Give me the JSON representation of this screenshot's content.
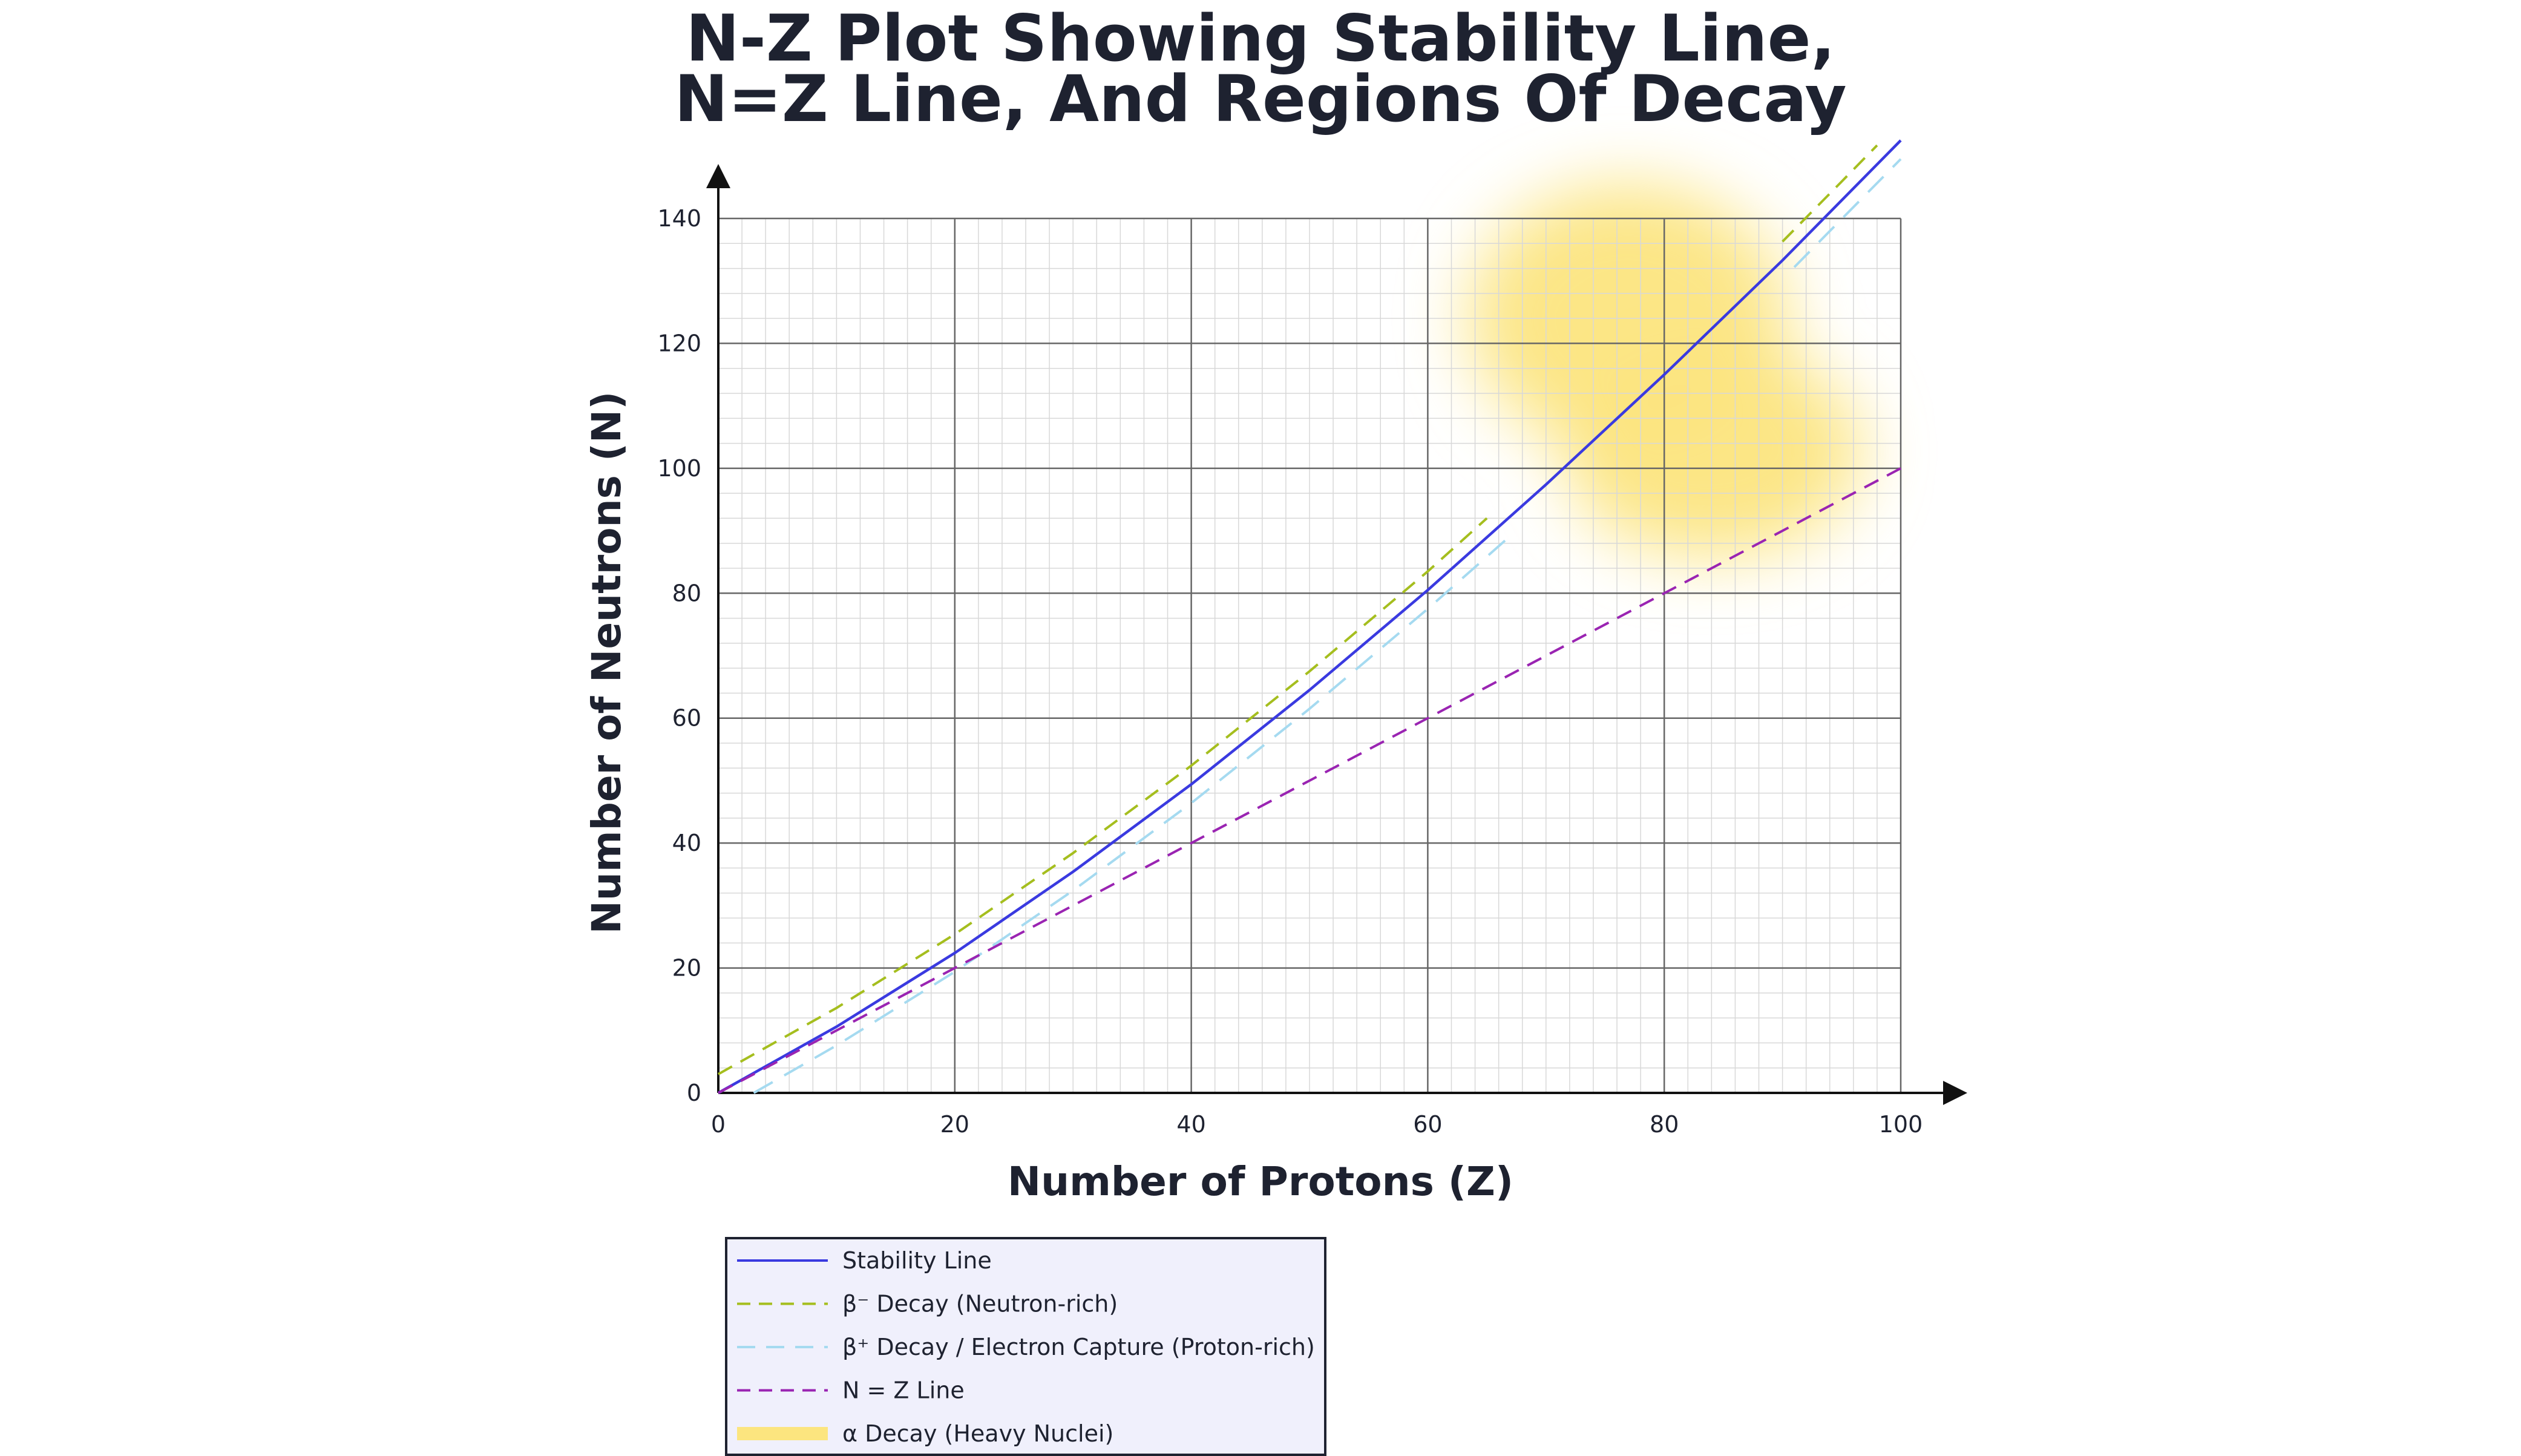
{
  "chart_data": {
    "type": "line",
    "title_lines": [
      "N-Z Plot Showing Stability Line,",
      "N=Z Line, And Regions Of Decay"
    ],
    "xlabel": "Number of Protons (Z)",
    "ylabel": "Number of Neutrons (N)",
    "xlim": [
      0,
      100
    ],
    "ylim": [
      0,
      140
    ],
    "x_ticks": [
      0,
      20,
      40,
      60,
      80,
      100
    ],
    "y_ticks": [
      0,
      20,
      40,
      60,
      80,
      100,
      120,
      140
    ],
    "grid": true,
    "legend_position": "bottom-left",
    "series": [
      {
        "name": "Stability Line",
        "style": "solid",
        "color": "#3a3ae0",
        "x": [
          0,
          10,
          20,
          30,
          40,
          50,
          60,
          70,
          80,
          90,
          100
        ],
        "y": [
          0,
          10.6,
          22.4,
          35.4,
          49.4,
          64.5,
          80.5,
          97.4,
          115,
          133.3,
          152.5
        ]
      },
      {
        "name": "β⁻ Decay (Neutron-rich)",
        "style": "dashed",
        "color": "#a5be1e",
        "segments": [
          {
            "x": [
              0,
              10,
              20,
              30,
              40,
              50,
              60,
              65
            ],
            "y": [
              3,
              13.6,
              25.4,
              38.4,
              52.4,
              67.5,
              83.5,
              92
            ]
          },
          {
            "x": [
              90,
              95,
              98
            ],
            "y": [
              136.3,
              145.9,
              151.7
            ]
          }
        ]
      },
      {
        "name": "β⁺ Decay / Electron Capture (Proton-rich)",
        "style": "dashed",
        "color": "#a5daf0",
        "segments": [
          {
            "x": [
              3,
              10,
              20,
              30,
              40,
              50,
              60,
              67
            ],
            "y": [
              0,
              7.6,
              19.4,
              32.4,
              46.4,
              61.5,
              77.5,
              89.2
            ]
          },
          {
            "x": [
              91,
              95,
              100
            ],
            "y": [
              132.2,
              139.9,
              149.5
            ]
          }
        ]
      },
      {
        "name": "N = Z Line",
        "style": "dashed",
        "color": "#9a24b2",
        "x": [
          0,
          100
        ],
        "y": [
          0,
          100
        ]
      }
    ],
    "regions": [
      {
        "name": "α Decay (Heavy Nuclei)",
        "color": "#fce57f",
        "z_range": [
          60,
          100
        ],
        "n_range": [
          80,
          145
        ]
      }
    ]
  }
}
